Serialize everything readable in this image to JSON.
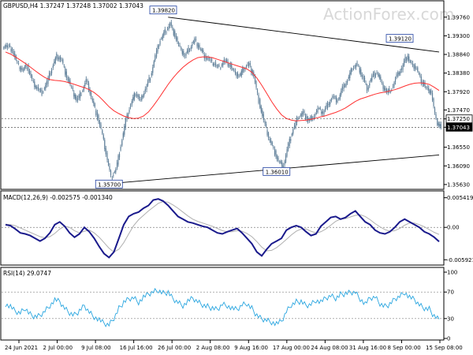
{
  "header": {
    "symbol_info": "GBPUSD,H4  1.37247 1.37248 1.37002 1.37043"
  },
  "watermark": "ActionForex.com",
  "colors": {
    "candle": "#5f7f99",
    "ma": "#ff3030",
    "trendline": "#000000",
    "macd": "#1a1a8c",
    "signal": "#b0b0b0",
    "rsi": "#2aa6e0",
    "dotted": "#808080"
  },
  "chart_data": [
    {
      "type": "line",
      "panel": "price",
      "title": "GBPUSD,H4  1.37247 1.37248 1.37002 1.37043",
      "y_ticks": [
        "1.39760",
        "1.39300",
        "1.38840",
        "1.38380",
        "1.37920",
        "1.37470",
        "1.37250",
        "1.37043",
        "1.36550",
        "1.36090",
        "1.35630"
      ],
      "ylim": [
        1.3555,
        1.3995
      ],
      "x_labels": [
        "24 Jun 2021",
        "2 Jul 00:00",
        "9 Jul 08:00",
        "16 Jul 16:00",
        "26 Jul 00:00",
        "2 Aug 08:00",
        "9 Aug 16:00",
        "17 Aug 00:00",
        "24 Aug 08:00",
        "31 Aug 16:00",
        "8 Sep 00:00",
        "15 Sep 08:00"
      ],
      "series": [
        {
          "role": "close",
          "values": [
            1.3905,
            1.3895,
            1.386,
            1.3845,
            1.3855,
            1.382,
            1.38,
            1.379,
            1.3815,
            1.385,
            1.388,
            1.387,
            1.383,
            1.38,
            1.377,
            1.379,
            1.382,
            1.378,
            1.374,
            1.37,
            1.364,
            1.358,
            1.36,
            1.366,
            1.372,
            1.376,
            1.379,
            1.377,
            1.38,
            1.383,
            1.388,
            1.392,
            1.394,
            1.396,
            1.393,
            1.39,
            1.388,
            1.39,
            1.392,
            1.39,
            1.388,
            1.387,
            1.386,
            1.385,
            1.387,
            1.386,
            1.384,
            1.383,
            1.385,
            1.386,
            1.383,
            1.377,
            1.372,
            1.368,
            1.365,
            1.362,
            1.361,
            1.366,
            1.37,
            1.373,
            1.374,
            1.372,
            1.373,
            1.375,
            1.374,
            1.376,
            1.378,
            1.377,
            1.38,
            1.382,
            1.385,
            1.386,
            1.383,
            1.38,
            1.383,
            1.384,
            1.381,
            1.379,
            1.38,
            1.383,
            1.385,
            1.388,
            1.386,
            1.385,
            1.382,
            1.38,
            1.379,
            1.372,
            1.3704
          ]
        },
        {
          "role": "moving-average",
          "values": [
            1.389,
            1.3885,
            1.3878,
            1.387,
            1.3862,
            1.3853,
            1.3844,
            1.3835,
            1.3827,
            1.3822,
            1.382,
            1.3819,
            1.3817,
            1.3814,
            1.381,
            1.3806,
            1.3802,
            1.3797,
            1.379,
            1.378,
            1.3768,
            1.3755,
            1.3745,
            1.3738,
            1.3732,
            1.3728,
            1.3726,
            1.3727,
            1.3732,
            1.3742,
            1.3757,
            1.3774,
            1.3792,
            1.381,
            1.3826,
            1.384,
            1.3852,
            1.3862,
            1.387,
            1.3876,
            1.3878,
            1.3878,
            1.3876,
            1.3872,
            1.3868,
            1.3864,
            1.386,
            1.3856,
            1.3852,
            1.3848,
            1.384,
            1.3826,
            1.3808,
            1.3788,
            1.3768,
            1.375,
            1.3735,
            1.3726,
            1.3722,
            1.372,
            1.3721,
            1.3722,
            1.3724,
            1.3727,
            1.373,
            1.3733,
            1.3737,
            1.3741,
            1.3746,
            1.3752,
            1.376,
            1.3768,
            1.3774,
            1.3778,
            1.3782,
            1.3786,
            1.3789,
            1.3791,
            1.3794,
            1.3797,
            1.3801,
            1.3806,
            1.381,
            1.3813,
            1.3814,
            1.3813,
            1.381,
            1.3803,
            1.3795
          ]
        }
      ],
      "annotations": [
        {
          "text": "1.39820",
          "x": 32,
          "y": 1.3982
        },
        {
          "text": "1.35700",
          "x": 21,
          "y": 1.357
        },
        {
          "text": "1.36010",
          "x": 55,
          "y": 1.3601
        },
        {
          "text": "1.39120",
          "x": 80,
          "y": 1.3912
        }
      ],
      "trendlines": [
        {
          "from": {
            "x": 33,
            "y": 1.3976
          },
          "to": {
            "x": 88,
            "y": 1.389
          }
        },
        {
          "from": {
            "x": 22,
            "y": 1.3566
          },
          "to": {
            "x": 88,
            "y": 1.3636
          }
        }
      ],
      "hlines": [
        1.3725,
        1.3704
      ]
    },
    {
      "type": "line",
      "panel": "macd",
      "title": "MACD(12,26,9) -0.002575 -0.001340",
      "y_ticks": [
        "0.005419",
        "0.00",
        "-0.005921"
      ],
      "ylim": [
        -0.0066,
        0.0058
      ],
      "hlines": [
        0
      ],
      "series": [
        {
          "role": "macd",
          "values": [
            0.0005,
            0.0003,
            -0.0003,
            -0.001,
            -0.0012,
            -0.0015,
            -0.002,
            -0.0025,
            -0.002,
            -0.001,
            0.0005,
            0.001,
            0.0002,
            -0.001,
            -0.0018,
            -0.0012,
            0.0,
            -0.0008,
            -0.002,
            -0.0035,
            -0.0048,
            -0.0055,
            -0.0045,
            -0.002,
            0.0005,
            0.002,
            0.0025,
            0.0028,
            0.0035,
            0.004,
            0.005,
            0.0052,
            0.0048,
            0.004,
            0.003,
            0.002,
            0.0015,
            0.001,
            0.0008,
            0.0005,
            0.0002,
            0.0,
            -0.0005,
            -0.001,
            -0.0012,
            -0.0008,
            -0.0005,
            -0.0002,
            -0.001,
            -0.002,
            -0.003,
            -0.0045,
            -0.0052,
            -0.004,
            -0.003,
            -0.0025,
            -0.002,
            -0.0005,
            0.0,
            0.0003,
            0.0,
            -0.0008,
            -0.0015,
            -0.0012,
            0.0002,
            0.001,
            0.0018,
            0.002,
            0.0015,
            0.0018,
            0.0025,
            0.003,
            0.002,
            0.001,
            0.0005,
            -0.0005,
            -0.001,
            -0.0012,
            -0.0008,
            0.0,
            0.001,
            0.0015,
            0.001,
            0.0005,
            0.0,
            -0.0008,
            -0.0012,
            -0.0018,
            -0.0026
          ]
        },
        {
          "role": "signal",
          "values": [
            0.0006,
            0.0005,
            0.0003,
            -0.0001,
            -0.0005,
            -0.0009,
            -0.0013,
            -0.0017,
            -0.0019,
            -0.0017,
            -0.0011,
            -0.0003,
            0.0002,
            0.0,
            -0.0006,
            -0.001,
            -0.0007,
            -0.0005,
            -0.001,
            -0.0018,
            -0.0028,
            -0.0038,
            -0.0045,
            -0.004,
            -0.0028,
            -0.0012,
            0.0003,
            0.0014,
            0.0022,
            0.003,
            0.0037,
            0.0044,
            0.0047,
            0.0046,
            0.0041,
            0.0035,
            0.0028,
            0.0021,
            0.0015,
            0.0011,
            0.0008,
            0.0005,
            0.0002,
            -0.0002,
            -0.0006,
            -0.0008,
            -0.0008,
            -0.0006,
            -0.0007,
            -0.0011,
            -0.0017,
            -0.0026,
            -0.0036,
            -0.0043,
            -0.0042,
            -0.0037,
            -0.003,
            -0.0022,
            -0.0014,
            -0.0007,
            -0.0003,
            -0.0003,
            -0.0007,
            -0.001,
            -0.0008,
            -0.0003,
            0.0004,
            0.0011,
            0.0015,
            0.0016,
            0.0019,
            0.0022,
            0.0023,
            0.002,
            0.0014,
            0.0007,
            0.0001,
            -0.0004,
            -0.0007,
            -0.0006,
            -0.0002,
            0.0004,
            0.0008,
            0.0008,
            0.0005,
            0.0001,
            -0.0004,
            -0.0009,
            -0.0013
          ]
        }
      ]
    },
    {
      "type": "line",
      "panel": "rsi",
      "title": "RSI(14) 29.0747",
      "y_ticks": [
        "100",
        "70",
        "30",
        "0"
      ],
      "ylim": [
        0,
        100
      ],
      "hlines": [
        70,
        30
      ],
      "series": [
        {
          "role": "rsi",
          "values": [
            52,
            48,
            40,
            38,
            45,
            36,
            33,
            35,
            42,
            50,
            58,
            55,
            45,
            38,
            35,
            42,
            50,
            40,
            33,
            28,
            22,
            20,
            30,
            45,
            55,
            60,
            62,
            55,
            62,
            66,
            70,
            72,
            68,
            70,
            60,
            55,
            50,
            56,
            60,
            55,
            50,
            48,
            46,
            44,
            52,
            50,
            45,
            43,
            50,
            52,
            45,
            35,
            30,
            28,
            25,
            22,
            25,
            40,
            50,
            55,
            56,
            50,
            52,
            58,
            55,
            60,
            64,
            60,
            66,
            68,
            70,
            70,
            60,
            52,
            60,
            62,
            52,
            48,
            52,
            60,
            64,
            70,
            62,
            58,
            50,
            45,
            44,
            34,
            29
          ]
        }
      ]
    }
  ]
}
